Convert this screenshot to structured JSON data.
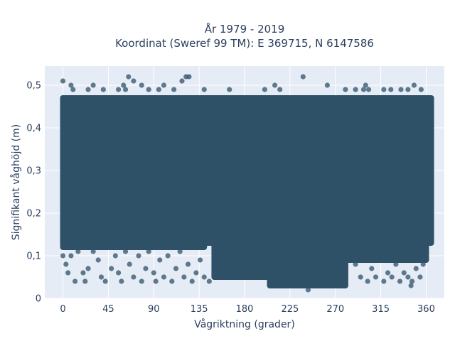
{
  "chart_data": {
    "type": "scatter",
    "title_line1": "År 1979 - 2019",
    "title_line2": "Koordinat (Sweref 99 TM): E 369715, N 6147586",
    "xlabel": "Vågriktning (grader)",
    "ylabel": "Signifikant våghöjd (m)",
    "xlim": [
      -18,
      378
    ],
    "ylim": [
      0,
      0.545
    ],
    "x_ticks": [
      0,
      45,
      90,
      135,
      180,
      225,
      270,
      315,
      360
    ],
    "x_tick_labels": [
      "0",
      "45",
      "90",
      "135",
      "180",
      "225",
      "270",
      "315",
      "360"
    ],
    "y_ticks": [
      0,
      0.1,
      0.2,
      0.3,
      0.4,
      0.5
    ],
    "y_tick_labels": [
      "0",
      "0,1",
      "0,2",
      "0,3",
      "0,4",
      "0,5"
    ],
    "grid": true,
    "legend": "none",
    "colors": {
      "marker": "#2f5168",
      "plot_bg": "#e5ecf6",
      "grid": "#ffffff",
      "text": "#2a3f5f"
    },
    "dense_regions": [
      {
        "x": [
          0,
          365
        ],
        "y": [
          0.13,
          0.47
        ]
      },
      {
        "x": [
          0,
          140
        ],
        "y": [
          0.12,
          0.47
        ]
      },
      {
        "x": [
          150,
          205
        ],
        "y": [
          0.05,
          0.45
        ]
      },
      {
        "x": [
          205,
          280
        ],
        "y": [
          0.03,
          0.44
        ]
      },
      {
        "x": [
          280,
          360
        ],
        "y": [
          0.09,
          0.47
        ]
      }
    ],
    "points": [
      [
        0,
        0.51
      ],
      [
        8,
        0.5
      ],
      [
        10,
        0.49
      ],
      [
        25,
        0.49
      ],
      [
        30,
        0.5
      ],
      [
        40,
        0.49
      ],
      [
        55,
        0.49
      ],
      [
        60,
        0.5
      ],
      [
        62,
        0.49
      ],
      [
        65,
        0.52
      ],
      [
        70,
        0.51
      ],
      [
        78,
        0.5
      ],
      [
        85,
        0.49
      ],
      [
        95,
        0.49
      ],
      [
        100,
        0.5
      ],
      [
        110,
        0.49
      ],
      [
        118,
        0.51
      ],
      [
        122,
        0.52
      ],
      [
        125,
        0.52
      ],
      [
        140,
        0.49
      ],
      [
        165,
        0.49
      ],
      [
        200,
        0.49
      ],
      [
        210,
        0.5
      ],
      [
        215,
        0.49
      ],
      [
        238,
        0.52
      ],
      [
        262,
        0.5
      ],
      [
        280,
        0.49
      ],
      [
        290,
        0.49
      ],
      [
        298,
        0.49
      ],
      [
        300,
        0.5
      ],
      [
        303,
        0.49
      ],
      [
        318,
        0.49
      ],
      [
        325,
        0.49
      ],
      [
        335,
        0.49
      ],
      [
        342,
        0.49
      ],
      [
        348,
        0.5
      ],
      [
        355,
        0.49
      ],
      [
        0,
        0.1
      ],
      [
        3,
        0.08
      ],
      [
        5,
        0.06
      ],
      [
        8,
        0.1
      ],
      [
        12,
        0.04
      ],
      [
        15,
        0.11
      ],
      [
        20,
        0.06
      ],
      [
        22,
        0.04
      ],
      [
        25,
        0.07
      ],
      [
        30,
        0.11
      ],
      [
        35,
        0.09
      ],
      [
        38,
        0.05
      ],
      [
        42,
        0.04
      ],
      [
        48,
        0.07
      ],
      [
        52,
        0.1
      ],
      [
        55,
        0.06
      ],
      [
        58,
        0.04
      ],
      [
        62,
        0.11
      ],
      [
        66,
        0.08
      ],
      [
        70,
        0.05
      ],
      [
        75,
        0.1
      ],
      [
        78,
        0.04
      ],
      [
        82,
        0.07
      ],
      [
        85,
        0.11
      ],
      [
        90,
        0.06
      ],
      [
        92,
        0.04
      ],
      [
        96,
        0.09
      ],
      [
        100,
        0.05
      ],
      [
        104,
        0.1
      ],
      [
        108,
        0.04
      ],
      [
        112,
        0.07
      ],
      [
        116,
        0.11
      ],
      [
        120,
        0.05
      ],
      [
        124,
        0.08
      ],
      [
        128,
        0.04
      ],
      [
        132,
        0.06
      ],
      [
        136,
        0.09
      ],
      [
        140,
        0.05
      ],
      [
        145,
        0.04
      ],
      [
        290,
        0.08
      ],
      [
        295,
        0.05
      ],
      [
        298,
        0.1
      ],
      [
        302,
        0.04
      ],
      [
        306,
        0.07
      ],
      [
        310,
        0.05
      ],
      [
        314,
        0.09
      ],
      [
        318,
        0.04
      ],
      [
        322,
        0.06
      ],
      [
        326,
        0.05
      ],
      [
        330,
        0.08
      ],
      [
        334,
        0.04
      ],
      [
        338,
        0.06
      ],
      [
        342,
        0.05
      ],
      [
        346,
        0.04
      ],
      [
        350,
        0.07
      ],
      [
        354,
        0.05
      ],
      [
        357,
        0.08
      ],
      [
        345,
        0.03
      ],
      [
        243,
        0.02
      ]
    ]
  }
}
